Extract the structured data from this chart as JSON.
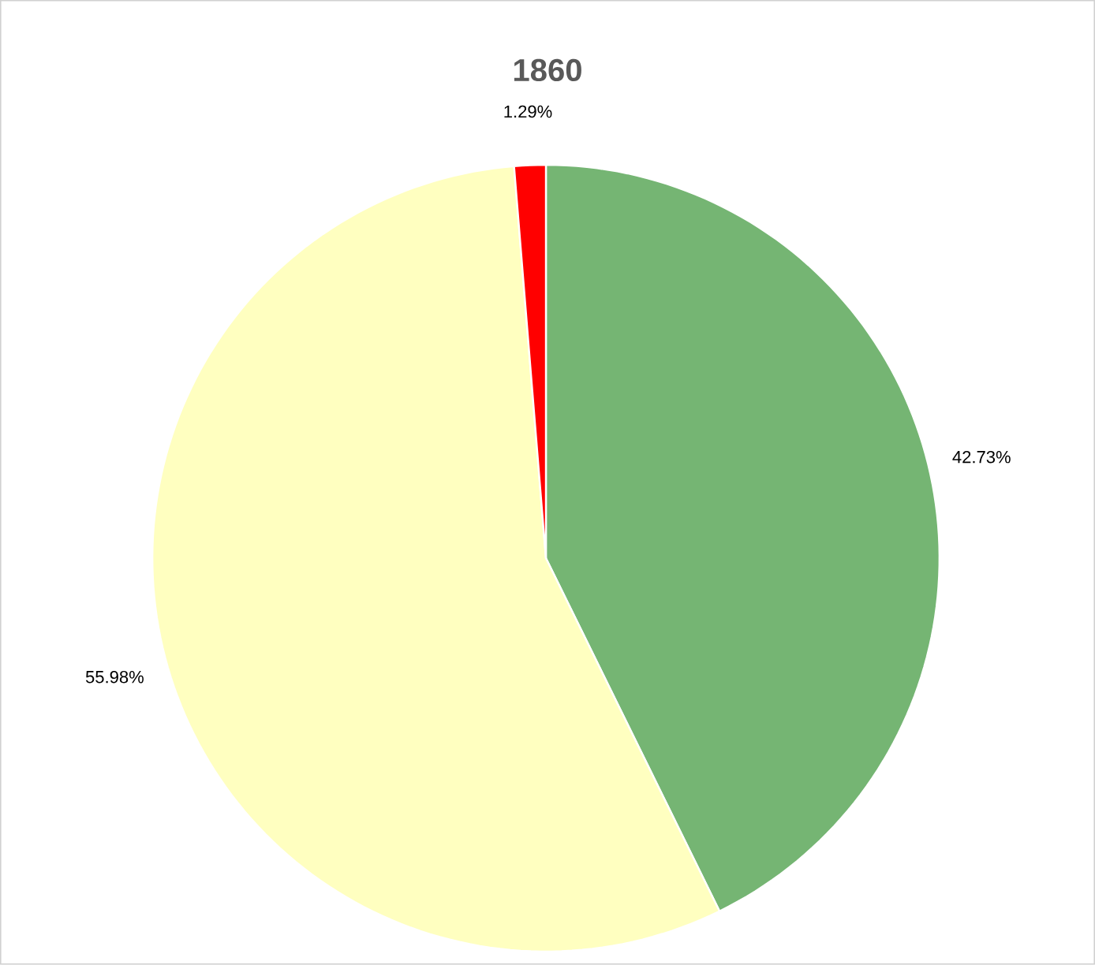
{
  "chart_data": {
    "type": "pie",
    "title": "1860",
    "categories": [
      null,
      null,
      null
    ],
    "values": [
      42.73,
      55.98,
      1.29
    ],
    "colors": [
      "#75b573",
      "#ffffc0",
      "#ff0000"
    ],
    "value_labels": [
      "42.73%",
      "55.98%",
      "1.29%"
    ]
  }
}
